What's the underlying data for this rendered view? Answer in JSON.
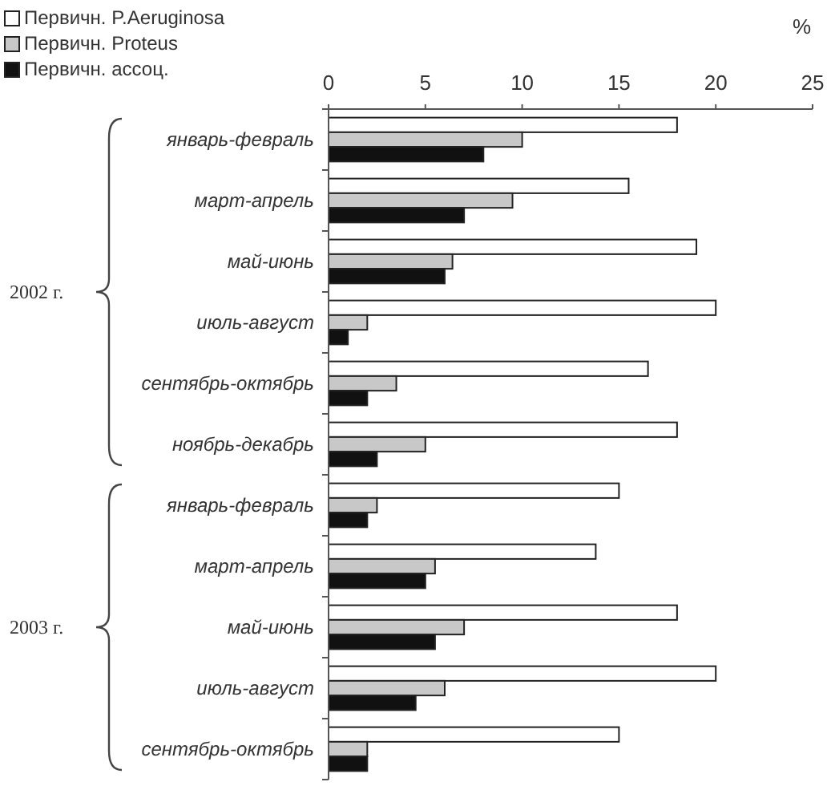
{
  "chart_data": {
    "type": "bar",
    "orientation": "horizontal",
    "xlabel": "%",
    "categories": [
      "январь-февраль",
      "март-апрель",
      "май-июнь",
      "июль-август",
      "сентябрь-октябрь",
      "ноябрь-декабрь",
      "январь-февраль",
      "март-апрель",
      "май-июнь",
      "июль-август",
      "сентябрь-октябрь"
    ],
    "series": [
      {
        "name": "Первичн. P.Aeruginosa",
        "color": "#ffffff",
        "values": [
          18,
          15.5,
          19,
          20,
          16.5,
          18,
          15,
          13.8,
          18,
          20,
          15
        ]
      },
      {
        "name": "Первичн. Proteus",
        "color": "#c8c8c8",
        "values": [
          10,
          9.5,
          6.4,
          2,
          3.5,
          5,
          2.5,
          5.5,
          7,
          6,
          2
        ]
      },
      {
        "name": "Первичн. ассоц.",
        "color": "#111111",
        "values": [
          8,
          7,
          6,
          1,
          2,
          2.5,
          2,
          5,
          5.5,
          4.5,
          2
        ]
      }
    ],
    "xlim": [
      0,
      25
    ],
    "xticks": [
      0,
      5,
      10,
      15,
      20,
      25
    ],
    "grid": false,
    "legend": "top left",
    "annotations": [
      "2002 г.",
      "2003 г."
    ]
  }
}
